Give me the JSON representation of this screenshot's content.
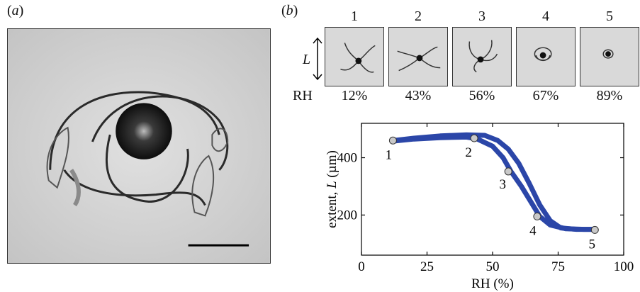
{
  "figure": {
    "panel_a_label": "a",
    "panel_b_label": "b"
  },
  "thumbnails": {
    "length_symbol": "L",
    "rh_row_label": "RH",
    "items": [
      {
        "number": "1",
        "rh": "12%"
      },
      {
        "number": "2",
        "rh": "43%"
      },
      {
        "number": "3",
        "rh": "56%"
      },
      {
        "number": "4",
        "rh": "67%"
      },
      {
        "number": "5",
        "rh": "89%"
      }
    ]
  },
  "chart_data": {
    "type": "line",
    "ylabel_prefix": "extent, ",
    "ylabel_var": "L",
    "ylabel_unit": " (µm)",
    "xlabel": "RH (%)",
    "xlim": [
      0,
      100
    ],
    "ylim": [
      60,
      520
    ],
    "xticks": [
      0,
      25,
      50,
      75,
      100
    ],
    "yticks": [
      200,
      400
    ],
    "series": [
      {
        "values": [
          [
            12,
            460
          ],
          [
            20,
            468
          ],
          [
            30,
            476
          ],
          [
            40,
            480
          ],
          [
            47,
            478
          ],
          [
            52,
            460
          ],
          [
            56,
            430
          ],
          [
            60,
            380
          ],
          [
            64,
            310
          ],
          [
            68,
            235
          ],
          [
            72,
            180
          ],
          [
            76,
            155
          ],
          [
            82,
            150
          ],
          [
            89,
            150
          ]
        ]
      },
      {
        "values": [
          [
            12,
            458
          ],
          [
            20,
            465
          ],
          [
            30,
            470
          ],
          [
            40,
            472
          ],
          [
            44,
            466
          ],
          [
            50,
            440
          ],
          [
            54,
            400
          ],
          [
            57,
            352
          ],
          [
            61,
            300
          ],
          [
            65,
            240
          ],
          [
            68,
            195
          ],
          [
            72,
            165
          ],
          [
            78,
            152
          ],
          [
            85,
            150
          ],
          [
            89,
            150
          ]
        ]
      }
    ],
    "points": [
      {
        "label": "1",
        "x": 12,
        "y": 460
      },
      {
        "label": "2",
        "x": 43,
        "y": 468
      },
      {
        "label": "3",
        "x": 56,
        "y": 352
      },
      {
        "label": "4",
        "x": 67,
        "y": 195
      },
      {
        "label": "5",
        "x": 89,
        "y": 148
      }
    ],
    "line_color": "#2b46a8",
    "marker_color": "#c9c9c9"
  }
}
